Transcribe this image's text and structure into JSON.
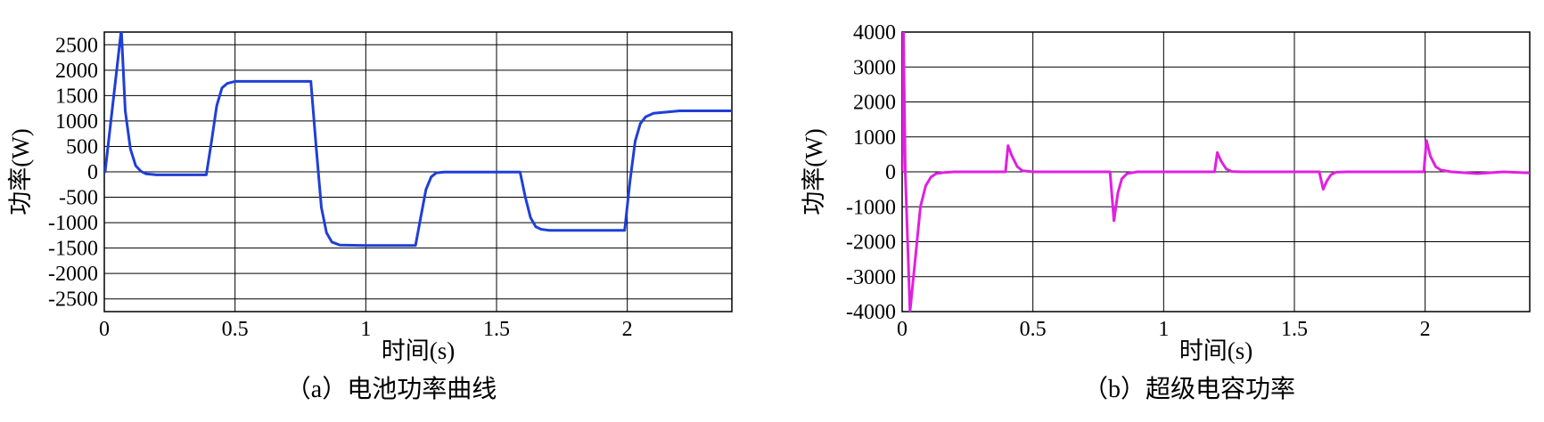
{
  "chart_data": [
    {
      "type": "line",
      "caption": "（a）电池功率曲线",
      "xlabel": "时间(s)",
      "ylabel": "功率(W)",
      "xlim": [
        0,
        2.4
      ],
      "ylim": [
        -2750,
        2750
      ],
      "x_ticks": [
        0,
        0.5,
        1,
        1.5,
        2
      ],
      "x_tick_labels": [
        "0",
        "0.5",
        "1",
        "1.5",
        "2"
      ],
      "y_ticks": [
        2500,
        2000,
        1500,
        1000,
        500,
        0,
        -500,
        -1000,
        -1500,
        -2000,
        -2500
      ],
      "y_tick_labels": [
        "2500",
        "2000",
        "1500",
        "1000",
        "500",
        "0",
        "-500",
        "-1000",
        "-1500",
        "-2000",
        "-2500"
      ],
      "grid": true,
      "color": "#1f3fd6",
      "series": [
        {
          "x": [
            0,
            0.003,
            0.065,
            0.08,
            0.1,
            0.12,
            0.14,
            0.16,
            0.2,
            0.3,
            0.39,
            0.41,
            0.43,
            0.45,
            0.47,
            0.5,
            0.6,
            0.7,
            0.79,
            0.81,
            0.83,
            0.85,
            0.87,
            0.9,
            1.0,
            1.1,
            1.19,
            1.21,
            1.23,
            1.25,
            1.27,
            1.3,
            1.4,
            1.5,
            1.59,
            1.61,
            1.63,
            1.65,
            1.67,
            1.7,
            1.8,
            1.9,
            1.99,
            2.01,
            2.03,
            2.05,
            2.07,
            2.1,
            2.2,
            2.3,
            2.4
          ],
          "y": [
            0,
            0,
            2800,
            1200,
            450,
            120,
            10,
            -40,
            -60,
            -60,
            -60,
            600,
            1300,
            1650,
            1740,
            1780,
            1780,
            1780,
            1780,
            500,
            -700,
            -1200,
            -1380,
            -1440,
            -1450,
            -1450,
            -1450,
            -900,
            -350,
            -100,
            -20,
            -5,
            -5,
            -5,
            -5,
            -500,
            -900,
            -1080,
            -1130,
            -1150,
            -1150,
            -1150,
            -1150,
            -200,
            600,
            950,
            1080,
            1150,
            1200,
            1200,
            1200
          ]
        }
      ]
    },
    {
      "type": "line",
      "caption": "（b）超级电容功率",
      "xlabel": "时间(s)",
      "ylabel": "功率(W)",
      "xlim": [
        0,
        2.4
      ],
      "ylim": [
        -4000,
        4000
      ],
      "x_ticks": [
        0,
        0.5,
        1,
        1.5,
        2
      ],
      "x_tick_labels": [
        "0",
        "0.5",
        "1",
        "1.5",
        "2"
      ],
      "y_ticks": [
        4000,
        3000,
        2000,
        1000,
        0,
        -1000,
        -2000,
        -3000,
        -4000
      ],
      "y_tick_labels": [
        "4000",
        "3000",
        "2000",
        "1000",
        "0",
        "-1000",
        "-2000",
        "-3000",
        "-4000"
      ],
      "grid": true,
      "color": "#e020e0",
      "series": [
        {
          "x": [
            0,
            0.005,
            0.012,
            0.03,
            0.05,
            0.07,
            0.09,
            0.11,
            0.13,
            0.16,
            0.2,
            0.3,
            0.395,
            0.405,
            0.42,
            0.44,
            0.46,
            0.5,
            0.6,
            0.7,
            0.795,
            0.81,
            0.825,
            0.84,
            0.86,
            0.9,
            1.0,
            1.1,
            1.195,
            1.205,
            1.22,
            1.24,
            1.26,
            1.3,
            1.4,
            1.5,
            1.595,
            1.61,
            1.625,
            1.64,
            1.66,
            1.7,
            1.8,
            1.9,
            1.995,
            2.005,
            2.02,
            2.04,
            2.06,
            2.1,
            2.2,
            2.3,
            2.4
          ],
          "y": [
            0,
            4000,
            0,
            -4000,
            -2500,
            -1000,
            -400,
            -150,
            -50,
            -20,
            0,
            0,
            0,
            750,
            450,
            150,
            30,
            0,
            0,
            0,
            0,
            -1400,
            -600,
            -200,
            -50,
            0,
            0,
            0,
            0,
            550,
            300,
            80,
            10,
            0,
            0,
            0,
            0,
            -500,
            -250,
            -80,
            -10,
            0,
            0,
            0,
            0,
            900,
            450,
            150,
            50,
            0,
            -50,
            0,
            -30
          ]
        }
      ]
    }
  ]
}
